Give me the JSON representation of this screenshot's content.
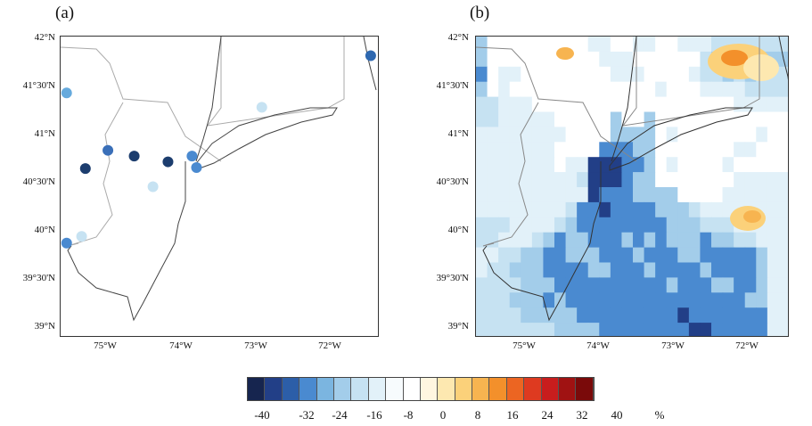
{
  "panels": [
    {
      "id": "a",
      "label": "(a)",
      "y_ticks": [
        "42°N",
        "41°30'N",
        "41°N",
        "40°30'N",
        "40°N",
        "39°30'N",
        "39°N"
      ],
      "x_ticks": [
        "75°W",
        "74°W",
        "73°W",
        "72°W"
      ]
    },
    {
      "id": "b",
      "label": "(b)",
      "y_ticks": [
        "42°N",
        "41°30'N",
        "41°N",
        "40°30'N",
        "40°N",
        "39°30'N",
        "39°N"
      ],
      "x_ticks": [
        "75°W",
        "74°W",
        "73°W",
        "72°W"
      ]
    }
  ],
  "stations": [
    {
      "lon": -75.55,
      "lat": 41.44,
      "color": "#66aadd"
    },
    {
      "lon": -75.0,
      "lat": 40.84,
      "color": "#3a6fb8"
    },
    {
      "lon": -74.65,
      "lat": 40.78,
      "color": "#1c3d6e"
    },
    {
      "lon": -75.3,
      "lat": 40.65,
      "color": "#1c3d6e"
    },
    {
      "lon": -74.2,
      "lat": 40.72,
      "color": "#1c3d6e"
    },
    {
      "lon": -73.88,
      "lat": 40.78,
      "color": "#4a8ad0"
    },
    {
      "lon": -73.82,
      "lat": 40.66,
      "color": "#4a8ad0"
    },
    {
      "lon": -74.4,
      "lat": 40.46,
      "color": "#c6e2f2"
    },
    {
      "lon": -75.35,
      "lat": 39.94,
      "color": "#c6e2f2"
    },
    {
      "lon": -75.55,
      "lat": 39.87,
      "color": "#4a8ad0"
    },
    {
      "lon": -72.95,
      "lat": 41.29,
      "color": "#c6e2f2"
    },
    {
      "lon": -71.5,
      "lat": 41.83,
      "color": "#2e68b0"
    }
  ],
  "colorbar": {
    "colors": [
      "#16254f",
      "#223f87",
      "#2c5ea8",
      "#4a8ad0",
      "#7bb5e0",
      "#a3cdea",
      "#c6e2f2",
      "#e2f1f9",
      "#f7fbfd",
      "#ffffff",
      "#fff6e0",
      "#fde8b0",
      "#fbd17a",
      "#f7b450",
      "#f3902b",
      "#ec6522",
      "#de3a20",
      "#c81d1d",
      "#a01212",
      "#7a0a0a"
    ],
    "labels": [
      "-40",
      "-32",
      "-24",
      "-16",
      "-8",
      "0",
      "8",
      "16",
      "24",
      "32",
      "40"
    ],
    "unit": "%"
  },
  "anomaly_field": {
    "rows": [
      "cfffffffffeeffeeffeeeddddddd",
      "cffffffffffeeeffffffdcddcccc",
      "bfeeffffffffeeeffffeddcdcddd",
      "cfefffffffffffffefffeeeedddd",
      "ddeeeffffffffffffffffffeeeee",
      "ddeeeeefffffcffcffffffffffff",
      "eeeeeeeeffffccccfefffffffeff",
      "eeeeeeeffffbbbccfffffffeefff",
      "eeeeeeefeeaaabbcfeffffefffff",
      "eeeeeeeeedaaabccfffffffeeeee",
      "eeeeeeeeeeabbbccccffffeeeeee",
      "eeeeeeeedbbabbbbcccdeeeeeeee",
      "dddeeeedcbbbbbbbbcccdddeeeee",
      "ddeeedcbccbbbcbcbcccbccddeee",
      "eeddccbbcccbbbcbbbccbbbbbcee",
      "eddcccbbbbccbbbcbbbbcbbbbcee",
      "ddddcccbbbbbbbbbbcbbbccbbcee",
      "dddcccbcbbbbbbbbbbbbbbbbccee",
      "ddddcccccbbbbbbbbbabbbbbbbee",
      "dddddddccccbbbbbbbbaabbbbbee"
    ]
  }
}
